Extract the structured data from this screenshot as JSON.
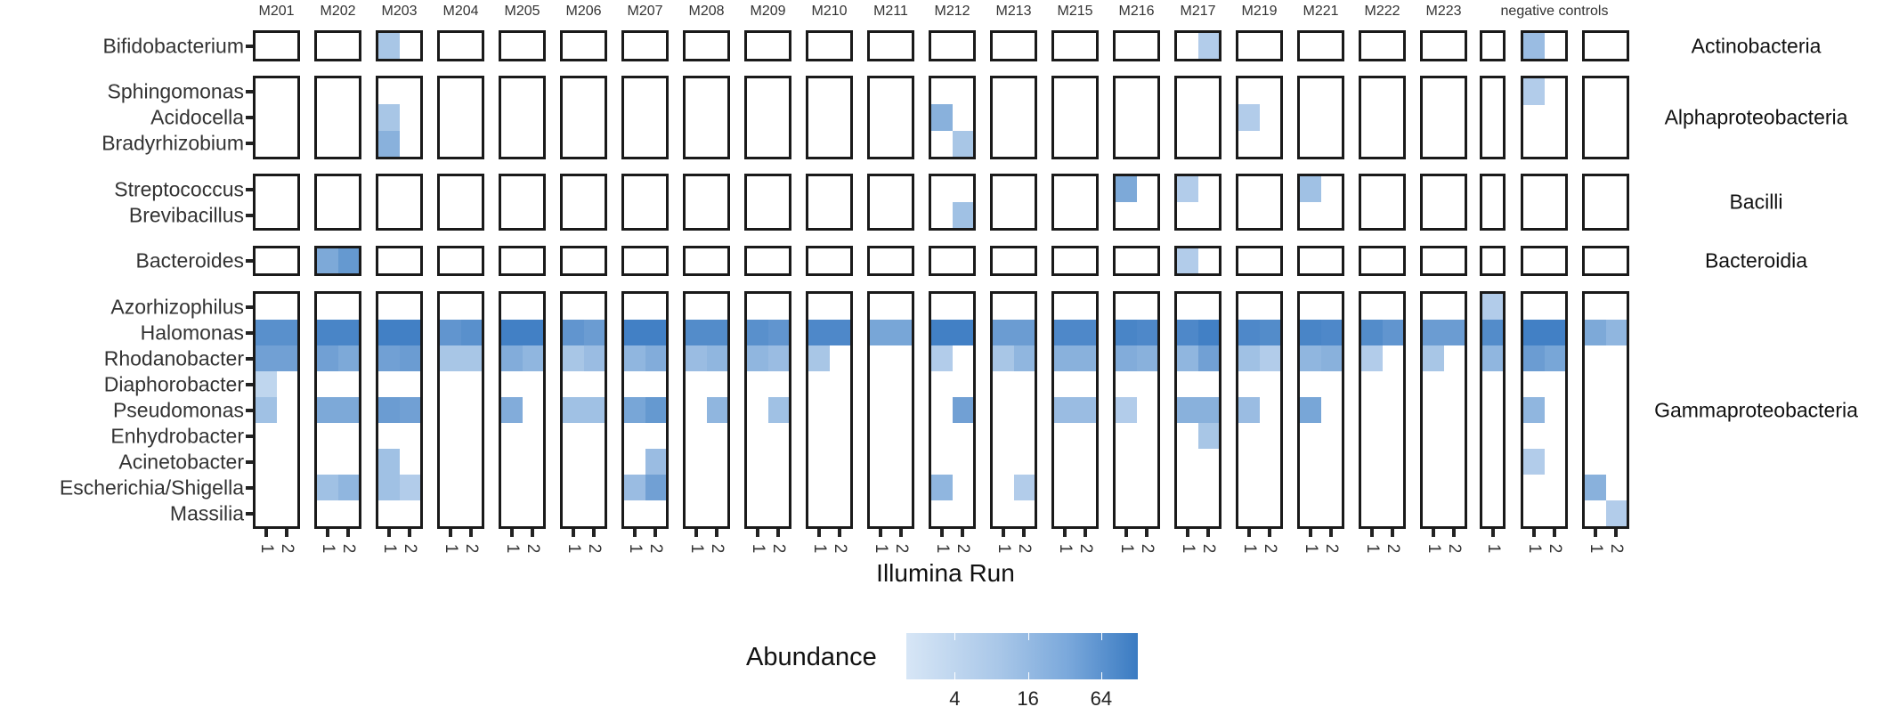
{
  "chart_data": {
    "type": "heatmap",
    "title": "",
    "xlabel": "Illumina Run",
    "ylabel": "",
    "legend": {
      "title": "Abundance",
      "scale": "log2",
      "ticks": [
        4,
        16,
        64
      ],
      "range": [
        1,
        128
      ],
      "position": "bottom",
      "color_low": "#d7e6f6",
      "color_high": "#3a7bc2"
    },
    "panels": [
      {
        "id": "M201",
        "runs": [
          "1",
          "2"
        ]
      },
      {
        "id": "M202",
        "runs": [
          "1",
          "2"
        ]
      },
      {
        "id": "M203",
        "runs": [
          "1",
          "2"
        ]
      },
      {
        "id": "M204",
        "runs": [
          "1",
          "2"
        ]
      },
      {
        "id": "M205",
        "runs": [
          "1",
          "2"
        ]
      },
      {
        "id": "M206",
        "runs": [
          "1",
          "2"
        ]
      },
      {
        "id": "M207",
        "runs": [
          "1",
          "2"
        ]
      },
      {
        "id": "M208",
        "runs": [
          "1",
          "2"
        ]
      },
      {
        "id": "M209",
        "runs": [
          "1",
          "2"
        ]
      },
      {
        "id": "M210",
        "runs": [
          "1",
          "2"
        ]
      },
      {
        "id": "M211",
        "runs": [
          "1",
          "2"
        ]
      },
      {
        "id": "M212",
        "runs": [
          "1",
          "2"
        ]
      },
      {
        "id": "M213",
        "runs": [
          "1",
          "2"
        ]
      },
      {
        "id": "M215",
        "runs": [
          "1",
          "2"
        ]
      },
      {
        "id": "M216",
        "runs": [
          "1",
          "2"
        ]
      },
      {
        "id": "M217",
        "runs": [
          "1",
          "2"
        ]
      },
      {
        "id": "M219",
        "runs": [
          "1",
          "2"
        ]
      },
      {
        "id": "M221",
        "runs": [
          "1",
          "2"
        ]
      },
      {
        "id": "M222",
        "runs": [
          "1",
          "2"
        ]
      },
      {
        "id": "M223",
        "runs": [
          "1",
          "2"
        ]
      },
      {
        "id": "NC1",
        "runs": [
          "1"
        ]
      },
      {
        "id": "NC2",
        "runs": [
          "1",
          "2"
        ]
      },
      {
        "id": "NC3",
        "runs": [
          "1",
          "2"
        ]
      }
    ],
    "negative_controls_label": "negative controls",
    "groups": [
      {
        "name": "Actinobacteria",
        "genera": [
          "Bifidobacterium"
        ]
      },
      {
        "name": "Alphaproteobacteria",
        "genera": [
          "Sphingomonas",
          "Acidocella",
          "Bradyrhizobium"
        ]
      },
      {
        "name": "Bacilli",
        "genera": [
          "Streptococcus",
          "Brevibacillus"
        ]
      },
      {
        "name": "Bacteroidia",
        "genera": [
          "Bacteroides"
        ]
      },
      {
        "name": "Gammaproteobacteria",
        "genera": [
          "Azorhizophilus",
          "Halomonas",
          "Rhodanobacter",
          "Diaphorobacter",
          "Pseudomonas",
          "Enhydrobacter",
          "Acinetobacter",
          "Escherichia/Shigella",
          "Massilia"
        ]
      }
    ],
    "cells": {
      "M201": {
        "Halomonas": [
          40,
          40
        ],
        "Rhodanobacter": [
          20,
          20
        ],
        "Diaphorobacter": [
          2,
          0
        ],
        "Pseudomonas": [
          5,
          0
        ]
      },
      "M202": {
        "Bacteroides": [
          14,
          28
        ],
        "Halomonas": [
          64,
          64
        ],
        "Rhodanobacter": [
          20,
          14
        ],
        "Pseudomonas": [
          14,
          14
        ],
        "Escherichia/Shigella": [
          5,
          8
        ]
      },
      "M203": {
        "Bifidobacterium": [
          4,
          0
        ],
        "Acidocella": [
          4,
          0
        ],
        "Bradyrhizobium": [
          10,
          0
        ],
        "Halomonas": [
          80,
          80
        ],
        "Rhodanobacter": [
          20,
          24
        ],
        "Pseudomonas": [
          24,
          20
        ],
        "Acinetobacter": [
          5,
          0
        ],
        "Escherichia/Shigella": [
          5,
          3
        ]
      },
      "M204": {
        "Halomonas": [
          32,
          40
        ],
        "Rhodanobacter": [
          4,
          4
        ]
      },
      "M205": {
        "Halomonas": [
          80,
          80
        ],
        "Rhodanobacter": [
          12,
          8
        ],
        "Pseudomonas": [
          12,
          0
        ]
      },
      "M206": {
        "Halomonas": [
          32,
          24
        ],
        "Rhodanobacter": [
          4,
          6
        ],
        "Pseudomonas": [
          5,
          5
        ]
      },
      "M207": {
        "Halomonas": [
          80,
          80
        ],
        "Rhodanobacter": [
          8,
          12
        ],
        "Pseudomonas": [
          16,
          28
        ],
        "Acinetobacter": [
          0,
          6
        ],
        "Escherichia/Shigella": [
          6,
          20
        ]
      },
      "M208": {
        "Halomonas": [
          48,
          48
        ],
        "Rhodanobacter": [
          6,
          8
        ],
        "Pseudomonas": [
          0,
          8
        ]
      },
      "M209": {
        "Halomonas": [
          40,
          32
        ],
        "Rhodanobacter": [
          8,
          6
        ],
        "Pseudomonas": [
          0,
          5
        ]
      },
      "M210": {
        "Halomonas": [
          56,
          56
        ],
        "Rhodanobacter": [
          4,
          0
        ]
      },
      "M211": {
        "Halomonas": [
          16,
          16
        ]
      },
      "M212": {
        "Acidocella": [
          10,
          0
        ],
        "Bradyrhizobium": [
          0,
          4
        ],
        "Brevibacillus": [
          0,
          5
        ],
        "Halomonas": [
          80,
          80
        ],
        "Rhodanobacter": [
          3,
          0
        ],
        "Pseudomonas": [
          0,
          20
        ],
        "Escherichia/Shigella": [
          8,
          0
        ]
      },
      "M213": {
        "Halomonas": [
          24,
          24
        ],
        "Rhodanobacter": [
          4,
          8
        ],
        "Escherichia/Shigella": [
          0,
          3
        ]
      },
      "M215": {
        "Halomonas": [
          56,
          56
        ],
        "Rhodanobacter": [
          10,
          10
        ],
        "Pseudomonas": [
          6,
          6
        ]
      },
      "M216": {
        "Streptococcus": [
          14,
          0
        ],
        "Halomonas": [
          64,
          56
        ],
        "Rhodanobacter": [
          12,
          10
        ],
        "Pseudomonas": [
          3,
          0
        ]
      },
      "M217": {
        "Bifidobacterium": [
          0,
          3
        ],
        "Streptococcus": [
          3,
          0
        ],
        "Bacteroides": [
          3,
          0
        ],
        "Halomonas": [
          56,
          80
        ],
        "Rhodanobacter": [
          8,
          20
        ],
        "Pseudomonas": [
          10,
          10
        ],
        "Enhydrobacter": [
          0,
          4
        ]
      },
      "M219": {
        "Acidocella": [
          3,
          0
        ],
        "Halomonas": [
          56,
          48
        ],
        "Rhodanobacter": [
          5,
          3
        ],
        "Pseudomonas": [
          6,
          0
        ]
      },
      "M221": {
        "Streptococcus": [
          5,
          0
        ],
        "Halomonas": [
          64,
          56
        ],
        "Rhodanobacter": [
          8,
          10
        ],
        "Pseudomonas": [
          16,
          0
        ]
      },
      "M222": {
        "Halomonas": [
          48,
          32
        ],
        "Rhodanobacter": [
          3,
          0
        ]
      },
      "M223": {
        "Halomonas": [
          24,
          24
        ],
        "Rhodanobacter": [
          4,
          0
        ]
      },
      "NC1": {
        "Azorhizophilus": [
          3
        ],
        "Halomonas": [
          48
        ],
        "Rhodanobacter": [
          8
        ]
      },
      "NC2": {
        "Bifidobacterium": [
          6,
          0
        ],
        "Sphingomonas": [
          3,
          0
        ],
        "Halomonas": [
          80,
          80
        ],
        "Rhodanobacter": [
          24,
          16
        ],
        "Pseudomonas": [
          8,
          0
        ],
        "Acinetobacter": [
          3,
          0
        ]
      },
      "NC3": {
        "Halomonas": [
          14,
          8
        ],
        "Escherichia/Shigella": [
          10,
          0
        ],
        "Massilia": [
          0,
          3
        ]
      }
    }
  },
  "strip_labels": [
    "M201",
    "M202",
    "M203",
    "M204",
    "M205",
    "M206",
    "M207",
    "M208",
    "M209",
    "M210",
    "M211",
    "M212",
    "M213",
    "M215",
    "M216",
    "M217",
    "M219",
    "M221",
    "M222",
    "M223"
  ],
  "x_axis_title": "Illumina Run",
  "legend_title": "Abundance",
  "legend_ticks": [
    "4",
    "16",
    "64"
  ]
}
